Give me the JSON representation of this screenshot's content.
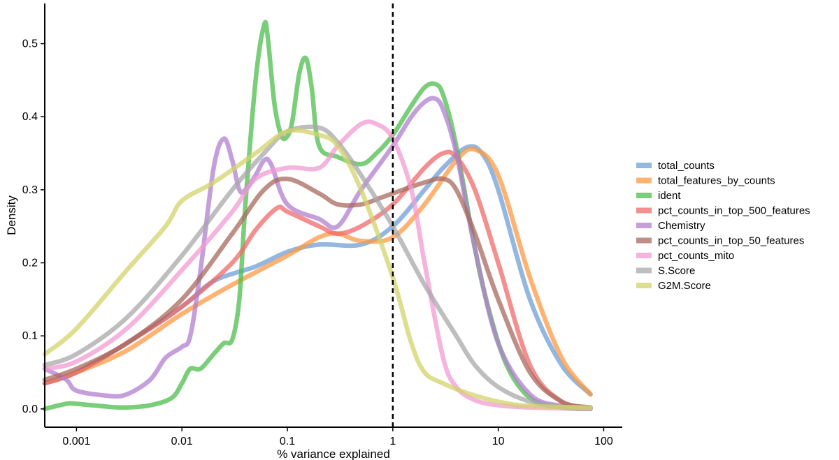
{
  "chart_data": {
    "type": "line",
    "title": "",
    "xlabel": "% variance explained",
    "ylabel": "Density",
    "x_scale": "log",
    "xlim": [
      0.0005,
      150
    ],
    "ylim": [
      -0.025,
      0.555
    ],
    "x_ticks": [
      0.001,
      0.01,
      0.1,
      1,
      10,
      100
    ],
    "x_tick_labels": [
      "0.001",
      "0.01",
      "0.1",
      "1",
      "10",
      "100"
    ],
    "y_ticks": [
      0.0,
      0.1,
      0.2,
      0.3,
      0.4,
      0.5
    ],
    "y_tick_labels": [
      "0.0",
      "0.1",
      "0.2",
      "0.3",
      "0.4",
      "0.5"
    ],
    "vline": {
      "x": 1,
      "style": "dashed",
      "color": "#000000"
    },
    "grid": false,
    "legend_position": "right",
    "series": [
      {
        "name": "total_counts",
        "color": "#6f9fd6",
        "points": [
          [
            0.0005,
            0.035
          ],
          [
            0.001,
            0.05
          ],
          [
            0.003,
            0.09
          ],
          [
            0.01,
            0.14
          ],
          [
            0.02,
            0.175
          ],
          [
            0.05,
            0.195
          ],
          [
            0.1,
            0.215
          ],
          [
            0.2,
            0.225
          ],
          [
            0.5,
            0.225
          ],
          [
            1,
            0.25
          ],
          [
            2,
            0.3
          ],
          [
            3,
            0.33
          ],
          [
            5,
            0.358
          ],
          [
            7,
            0.35
          ],
          [
            10,
            0.3
          ],
          [
            20,
            0.15
          ],
          [
            40,
            0.06
          ],
          [
            75,
            0.02
          ]
        ]
      },
      {
        "name": "total_features_by_counts",
        "color": "#fd9a43",
        "points": [
          [
            0.0005,
            0.035
          ],
          [
            0.001,
            0.05
          ],
          [
            0.003,
            0.08
          ],
          [
            0.01,
            0.13
          ],
          [
            0.03,
            0.17
          ],
          [
            0.1,
            0.21
          ],
          [
            0.2,
            0.235
          ],
          [
            0.3,
            0.24
          ],
          [
            0.5,
            0.23
          ],
          [
            1,
            0.235
          ],
          [
            2,
            0.28
          ],
          [
            4,
            0.34
          ],
          [
            6,
            0.355
          ],
          [
            10,
            0.32
          ],
          [
            20,
            0.18
          ],
          [
            40,
            0.07
          ],
          [
            75,
            0.02
          ]
        ]
      },
      {
        "name": "ident",
        "color": "#4dbd4d",
        "points": [
          [
            0.0005,
            0.0
          ],
          [
            0.0008,
            0.007
          ],
          [
            0.001,
            0.007
          ],
          [
            0.002,
            0.003
          ],
          [
            0.003,
            0.002
          ],
          [
            0.005,
            0.005
          ],
          [
            0.008,
            0.015
          ],
          [
            0.01,
            0.035
          ],
          [
            0.012,
            0.055
          ],
          [
            0.015,
            0.055
          ],
          [
            0.02,
            0.075
          ],
          [
            0.025,
            0.09
          ],
          [
            0.03,
            0.095
          ],
          [
            0.035,
            0.15
          ],
          [
            0.04,
            0.28
          ],
          [
            0.05,
            0.45
          ],
          [
            0.06,
            0.525
          ],
          [
            0.065,
            0.51
          ],
          [
            0.075,
            0.42
          ],
          [
            0.085,
            0.38
          ],
          [
            0.095,
            0.37
          ],
          [
            0.11,
            0.39
          ],
          [
            0.13,
            0.46
          ],
          [
            0.15,
            0.48
          ],
          [
            0.17,
            0.44
          ],
          [
            0.2,
            0.36
          ],
          [
            0.3,
            0.345
          ],
          [
            0.5,
            0.335
          ],
          [
            0.7,
            0.35
          ],
          [
            1,
            0.375
          ],
          [
            1.5,
            0.415
          ],
          [
            2,
            0.44
          ],
          [
            2.5,
            0.445
          ],
          [
            3,
            0.43
          ],
          [
            4,
            0.36
          ],
          [
            6,
            0.22
          ],
          [
            8,
            0.14
          ],
          [
            12,
            0.06
          ],
          [
            20,
            0.015
          ],
          [
            40,
            0.002
          ],
          [
            75,
            0.0
          ]
        ]
      },
      {
        "name": "pct_counts_in_top_500_features",
        "color": "#ef6969",
        "points": [
          [
            0.0005,
            0.035
          ],
          [
            0.001,
            0.05
          ],
          [
            0.003,
            0.09
          ],
          [
            0.01,
            0.14
          ],
          [
            0.03,
            0.2
          ],
          [
            0.05,
            0.245
          ],
          [
            0.08,
            0.275
          ],
          [
            0.1,
            0.27
          ],
          [
            0.2,
            0.25
          ],
          [
            0.3,
            0.24
          ],
          [
            0.5,
            0.25
          ],
          [
            1,
            0.28
          ],
          [
            2,
            0.33
          ],
          [
            3,
            0.35
          ],
          [
            4,
            0.345
          ],
          [
            6,
            0.3
          ],
          [
            10,
            0.2
          ],
          [
            20,
            0.06
          ],
          [
            40,
            0.01
          ],
          [
            75,
            0.002
          ]
        ]
      },
      {
        "name": "Chemistry",
        "color": "#b07fcf",
        "points": [
          [
            0.0005,
            0.055
          ],
          [
            0.0008,
            0.04
          ],
          [
            0.001,
            0.025
          ],
          [
            0.002,
            0.018
          ],
          [
            0.003,
            0.02
          ],
          [
            0.005,
            0.04
          ],
          [
            0.007,
            0.07
          ],
          [
            0.01,
            0.085
          ],
          [
            0.012,
            0.1
          ],
          [
            0.015,
            0.19
          ],
          [
            0.02,
            0.33
          ],
          [
            0.025,
            0.37
          ],
          [
            0.03,
            0.34
          ],
          [
            0.035,
            0.3
          ],
          [
            0.04,
            0.3
          ],
          [
            0.05,
            0.32
          ],
          [
            0.06,
            0.34
          ],
          [
            0.07,
            0.335
          ],
          [
            0.1,
            0.28
          ],
          [
            0.2,
            0.26
          ],
          [
            0.3,
            0.25
          ],
          [
            0.5,
            0.3
          ],
          [
            1,
            0.36
          ],
          [
            1.5,
            0.4
          ],
          [
            2,
            0.42
          ],
          [
            2.5,
            0.425
          ],
          [
            3,
            0.41
          ],
          [
            4,
            0.35
          ],
          [
            6,
            0.22
          ],
          [
            10,
            0.09
          ],
          [
            20,
            0.02
          ],
          [
            40,
            0.004
          ],
          [
            75,
            0.001
          ]
        ]
      },
      {
        "name": "pct_counts_in_top_50_features",
        "color": "#a8695d",
        "points": [
          [
            0.0005,
            0.04
          ],
          [
            0.001,
            0.055
          ],
          [
            0.003,
            0.09
          ],
          [
            0.01,
            0.15
          ],
          [
            0.03,
            0.24
          ],
          [
            0.06,
            0.3
          ],
          [
            0.1,
            0.315
          ],
          [
            0.2,
            0.295
          ],
          [
            0.3,
            0.28
          ],
          [
            0.5,
            0.28
          ],
          [
            0.8,
            0.29
          ],
          [
            1,
            0.295
          ],
          [
            2,
            0.31
          ],
          [
            3,
            0.315
          ],
          [
            4,
            0.3
          ],
          [
            6,
            0.24
          ],
          [
            10,
            0.15
          ],
          [
            20,
            0.05
          ],
          [
            40,
            0.01
          ],
          [
            75,
            0.002
          ]
        ]
      },
      {
        "name": "pct_counts_mito",
        "color": "#f29bd2",
        "points": [
          [
            0.0005,
            0.055
          ],
          [
            0.001,
            0.065
          ],
          [
            0.003,
            0.11
          ],
          [
            0.01,
            0.19
          ],
          [
            0.03,
            0.27
          ],
          [
            0.05,
            0.315
          ],
          [
            0.1,
            0.33
          ],
          [
            0.2,
            0.33
          ],
          [
            0.3,
            0.36
          ],
          [
            0.5,
            0.39
          ],
          [
            0.7,
            0.39
          ],
          [
            1,
            0.37
          ],
          [
            1.5,
            0.3
          ],
          [
            2,
            0.2
          ],
          [
            3,
            0.07
          ],
          [
            4,
            0.03
          ],
          [
            6,
            0.012
          ],
          [
            10,
            0.005
          ],
          [
            20,
            0.002
          ],
          [
            75,
            0.0
          ]
        ]
      },
      {
        "name": "S.Score",
        "color": "#a8a8a8",
        "points": [
          [
            0.0005,
            0.06
          ],
          [
            0.001,
            0.075
          ],
          [
            0.003,
            0.125
          ],
          [
            0.01,
            0.21
          ],
          [
            0.03,
            0.3
          ],
          [
            0.06,
            0.35
          ],
          [
            0.1,
            0.38
          ],
          [
            0.2,
            0.385
          ],
          [
            0.3,
            0.365
          ],
          [
            0.5,
            0.32
          ],
          [
            1,
            0.25
          ],
          [
            2,
            0.17
          ],
          [
            4,
            0.1
          ],
          [
            6,
            0.06
          ],
          [
            10,
            0.03
          ],
          [
            20,
            0.01
          ],
          [
            40,
            0.003
          ],
          [
            75,
            0.001
          ]
        ]
      },
      {
        "name": "G2M.Score",
        "color": "#d3d36b",
        "points": [
          [
            0.0005,
            0.075
          ],
          [
            0.001,
            0.11
          ],
          [
            0.003,
            0.19
          ],
          [
            0.007,
            0.25
          ],
          [
            0.01,
            0.285
          ],
          [
            0.02,
            0.31
          ],
          [
            0.05,
            0.35
          ],
          [
            0.1,
            0.38
          ],
          [
            0.2,
            0.375
          ],
          [
            0.3,
            0.36
          ],
          [
            0.5,
            0.3
          ],
          [
            1,
            0.18
          ],
          [
            1.5,
            0.09
          ],
          [
            2,
            0.05
          ],
          [
            3,
            0.035
          ],
          [
            5,
            0.022
          ],
          [
            10,
            0.01
          ],
          [
            20,
            0.004
          ],
          [
            75,
            0.002
          ]
        ]
      }
    ]
  }
}
